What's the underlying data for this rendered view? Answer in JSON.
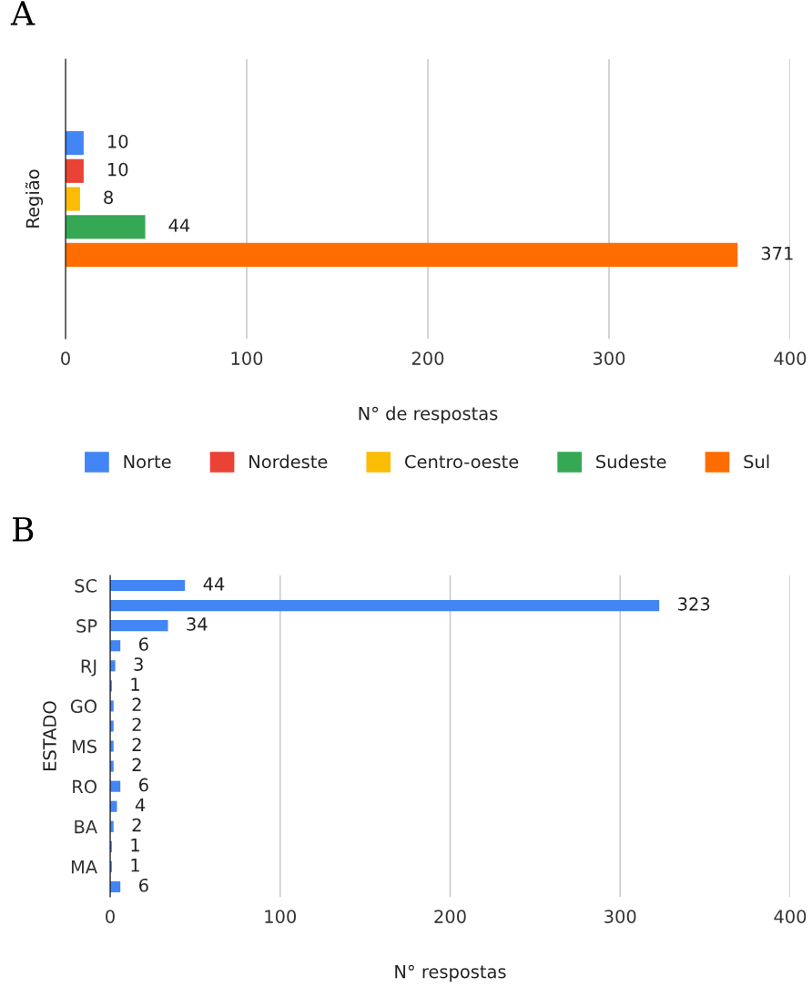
{
  "chart_data": [
    {
      "type": "bar",
      "title": "A",
      "orientation": "horizontal",
      "categories": [
        null
      ],
      "xlabel": "N° de respostas",
      "ylabel": "Região",
      "series": [
        {
          "name": "Norte",
          "color": "#4285f4",
          "values": [
            10
          ]
        },
        {
          "name": "Nordeste",
          "color": "#ea4335",
          "values": [
            10
          ]
        },
        {
          "name": "Centro-oeste",
          "color": "#fbbc04",
          "values": [
            8
          ]
        },
        {
          "name": "Sudeste",
          "color": "#34a853",
          "values": [
            44
          ]
        },
        {
          "name": "Sul",
          "color": "#ff6d01",
          "values": [
            371
          ]
        }
      ],
      "xlim": [
        0,
        400
      ],
      "xticks": [
        0,
        100,
        200,
        300,
        400
      ],
      "grid": "x",
      "legend": "bottom",
      "data_labels": true
    },
    {
      "type": "bar",
      "title": "B",
      "orientation": "horizontal",
      "xlabel": "N° respostas",
      "ylabel": "ESTADO",
      "categories": [
        "SC",
        null,
        "SP",
        null,
        "RJ",
        null,
        "GO",
        null,
        "MS",
        null,
        "RO",
        null,
        "BA",
        null,
        "MA",
        null
      ],
      "series": [
        {
          "color": "#4285f4",
          "values": [
            44,
            323,
            34,
            6,
            3,
            1,
            2,
            2,
            2,
            2,
            6,
            4,
            2,
            1,
            1,
            6
          ]
        }
      ],
      "xlim": [
        0,
        400
      ],
      "xticks": [
        0,
        100,
        200,
        300,
        400
      ],
      "grid": "x",
      "data_labels": true
    }
  ]
}
